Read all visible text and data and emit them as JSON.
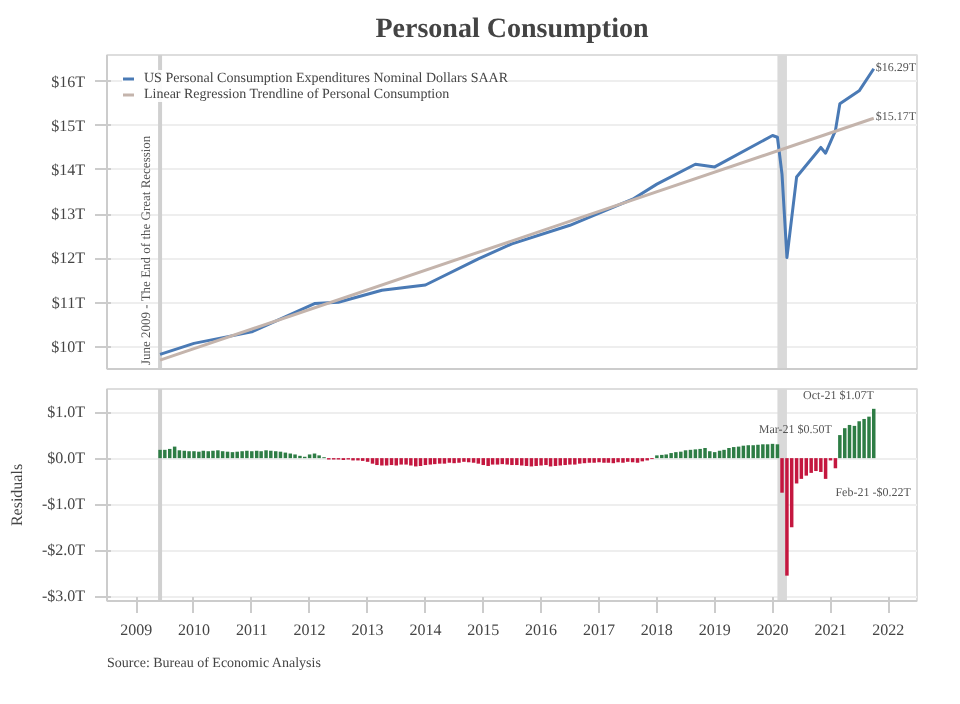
{
  "chart_data": [
    {
      "type": "line",
      "title": "Personal Consumption",
      "series": [
        {
          "name": "US Personal Consumption Expenditures Nominal Dollars SAAR",
          "color": "#4a7ab5",
          "x": [
            "2009-06",
            "2010-01",
            "2011-01",
            "2012-02",
            "2012-07",
            "2013-04",
            "2014-01",
            "2014-12",
            "2015-07",
            "2016-07",
            "2017-08",
            "2018-01",
            "2018-09",
            "2019-01",
            "2020-01",
            "2020-02",
            "2020-03",
            "2020-04",
            "2020-06",
            "2020-11",
            "2020-12",
            "2021-02",
            "2021-03",
            "2021-07",
            "2021-10"
          ],
          "values": [
            9.83,
            10.08,
            10.34,
            10.98,
            11.01,
            11.28,
            11.4,
            11.99,
            12.33,
            12.75,
            13.34,
            13.68,
            14.13,
            14.07,
            14.78,
            14.74,
            13.9,
            12.02,
            13.84,
            14.51,
            14.38,
            14.89,
            15.5,
            15.79,
            16.29
          ]
        },
        {
          "name": "Linear Regression Trendline of Personal Consumption",
          "color": "#c4b4ac",
          "x": [
            "2009-06",
            "2021-10"
          ],
          "values": [
            9.7,
            15.17
          ]
        }
      ],
      "xlim": [
        "2008-07",
        "2022-07"
      ],
      "xticks": [
        "2009",
        "2010",
        "2011",
        "2012",
        "2013",
        "2014",
        "2015",
        "2016",
        "2017",
        "2018",
        "2019",
        "2020",
        "2021",
        "2022"
      ],
      "ylim": [
        9.5,
        16.6
      ],
      "yticks": [
        {
          "value": 10,
          "label": "$10T"
        },
        {
          "value": 11,
          "label": "$11T"
        },
        {
          "value": 12,
          "label": "$12T"
        },
        {
          "value": 13,
          "label": "$13T"
        },
        {
          "value": 14,
          "label": "$14T"
        },
        {
          "value": 15,
          "label": "$15T"
        },
        {
          "value": 16,
          "label": "$16T"
        }
      ],
      "tick_labels": "y",
      "grid": "y",
      "legend": "top left",
      "ref_lines": [
        {
          "axis": "x",
          "value": "2009-06",
          "label": "June 2009 - The End of the Great Recession",
          "color": "#d0d0d0"
        }
      ],
      "bands": [
        {
          "axis": "x",
          "from": "2020-02",
          "to": "2020-04",
          "color": "#d9d9d9"
        }
      ],
      "annotations": [
        {
          "text": "$16.29T",
          "x": "2021-10",
          "y": 16.29
        },
        {
          "text": "$15.17T",
          "x": "2021-10",
          "y": 15.17
        }
      ]
    },
    {
      "type": "bar",
      "ylabel": "Residuals",
      "x": [
        "2009-06",
        "2009-07",
        "2009-08",
        "2009-09",
        "2009-10",
        "2009-11",
        "2009-12",
        "2010-01",
        "2010-02",
        "2010-03",
        "2010-04",
        "2010-05",
        "2010-06",
        "2010-07",
        "2010-08",
        "2010-09",
        "2010-10",
        "2010-11",
        "2010-12",
        "2011-01",
        "2011-02",
        "2011-03",
        "2011-04",
        "2011-05",
        "2011-06",
        "2011-07",
        "2011-08",
        "2011-09",
        "2011-10",
        "2011-11",
        "2011-12",
        "2012-01",
        "2012-02",
        "2012-03",
        "2012-04",
        "2012-05",
        "2012-06",
        "2012-07",
        "2012-08",
        "2012-09",
        "2012-10",
        "2012-11",
        "2012-12",
        "2013-01",
        "2013-02",
        "2013-03",
        "2013-04",
        "2013-05",
        "2013-06",
        "2013-07",
        "2013-08",
        "2013-09",
        "2013-10",
        "2013-11",
        "2013-12",
        "2014-01",
        "2014-02",
        "2014-03",
        "2014-04",
        "2014-05",
        "2014-06",
        "2014-07",
        "2014-08",
        "2014-09",
        "2014-10",
        "2014-11",
        "2014-12",
        "2015-01",
        "2015-02",
        "2015-03",
        "2015-04",
        "2015-05",
        "2015-06",
        "2015-07",
        "2015-08",
        "2015-09",
        "2015-10",
        "2015-11",
        "2015-12",
        "2016-01",
        "2016-02",
        "2016-03",
        "2016-04",
        "2016-05",
        "2016-06",
        "2016-07",
        "2016-08",
        "2016-09",
        "2016-10",
        "2016-11",
        "2016-12",
        "2017-01",
        "2017-02",
        "2017-03",
        "2017-04",
        "2017-05",
        "2017-06",
        "2017-07",
        "2017-08",
        "2017-09",
        "2017-10",
        "2017-11",
        "2017-12",
        "2018-01",
        "2018-02",
        "2018-03",
        "2018-04",
        "2018-05",
        "2018-06",
        "2018-07",
        "2018-08",
        "2018-09",
        "2018-10",
        "2018-11",
        "2018-12",
        "2019-01",
        "2019-02",
        "2019-03",
        "2019-04",
        "2019-05",
        "2019-06",
        "2019-07",
        "2019-08",
        "2019-09",
        "2019-10",
        "2019-11",
        "2019-12",
        "2020-01",
        "2020-02",
        "2020-03",
        "2020-04",
        "2020-05",
        "2020-06",
        "2020-07",
        "2020-08",
        "2020-09",
        "2020-10",
        "2020-11",
        "2020-12",
        "2021-01",
        "2021-02",
        "2021-03",
        "2021-04",
        "2021-05",
        "2021-06",
        "2021-07",
        "2021-08",
        "2021-09",
        "2021-10"
      ],
      "values": [
        0.18,
        0.18,
        0.2,
        0.25,
        0.17,
        0.16,
        0.15,
        0.15,
        0.14,
        0.16,
        0.15,
        0.16,
        0.17,
        0.15,
        0.14,
        0.13,
        0.14,
        0.15,
        0.16,
        0.15,
        0.16,
        0.15,
        0.17,
        0.16,
        0.15,
        0.14,
        0.12,
        0.1,
        0.08,
        0.05,
        0.03,
        0.08,
        0.1,
        0.06,
        0.02,
        -0.03,
        -0.03,
        -0.03,
        -0.04,
        -0.03,
        -0.05,
        -0.05,
        -0.06,
        -0.08,
        -0.12,
        -0.15,
        -0.16,
        -0.16,
        -0.15,
        -0.16,
        -0.14,
        -0.14,
        -0.16,
        -0.18,
        -0.17,
        -0.15,
        -0.14,
        -0.13,
        -0.12,
        -0.12,
        -0.1,
        -0.11,
        -0.1,
        -0.08,
        -0.09,
        -0.1,
        -0.12,
        -0.15,
        -0.17,
        -0.14,
        -0.14,
        -0.13,
        -0.14,
        -0.15,
        -0.15,
        -0.16,
        -0.17,
        -0.18,
        -0.17,
        -0.16,
        -0.15,
        -0.18,
        -0.17,
        -0.16,
        -0.15,
        -0.14,
        -0.14,
        -0.12,
        -0.11,
        -0.1,
        -0.1,
        -0.09,
        -0.1,
        -0.1,
        -0.11,
        -0.09,
        -0.1,
        -0.08,
        -0.09,
        -0.1,
        -0.07,
        -0.05,
        -0.02,
        0.06,
        0.07,
        0.08,
        0.11,
        0.13,
        0.14,
        0.17,
        0.18,
        0.19,
        0.2,
        0.22,
        0.15,
        0.13,
        0.16,
        0.18,
        0.22,
        0.24,
        0.25,
        0.27,
        0.28,
        0.28,
        0.29,
        0.3,
        0.3,
        0.31,
        0.3,
        -0.75,
        -2.55,
        -1.5,
        -0.55,
        -0.45,
        -0.38,
        -0.32,
        -0.28,
        -0.3,
        -0.45,
        -0.05,
        -0.22,
        0.5,
        0.65,
        0.72,
        0.7,
        0.8,
        0.85,
        0.9,
        1.07
      ],
      "colors": [
        "#2e7d45",
        "#2e7d45",
        "#2e7d45",
        "#2e7d45",
        "#2e7d45",
        "#2e7d45",
        "#2e7d45",
        "#2e7d45",
        "#2e7d45",
        "#2e7d45",
        "#2e7d45",
        "#2e7d45",
        "#2e7d45",
        "#2e7d45",
        "#2e7d45",
        "#2e7d45",
        "#2e7d45",
        "#2e7d45",
        "#2e7d45",
        "#2e7d45",
        "#2e7d45",
        "#2e7d45",
        "#2e7d45",
        "#2e7d45",
        "#2e7d45",
        "#2e7d45",
        "#2e7d45",
        "#2e7d45",
        "#2e7d45",
        "#2e7d45",
        "#2e7d45",
        "#2e7d45",
        "#2e7d45",
        "#2e7d45",
        "#2e7d45",
        "#c4173f",
        "#c4173f",
        "#c4173f",
        "#c4173f",
        "#c4173f",
        "#c4173f",
        "#c4173f",
        "#c4173f",
        "#c4173f",
        "#c4173f",
        "#c4173f",
        "#c4173f",
        "#c4173f",
        "#c4173f",
        "#c4173f",
        "#c4173f",
        "#c4173f",
        "#c4173f",
        "#c4173f",
        "#c4173f",
        "#c4173f",
        "#c4173f",
        "#c4173f",
        "#c4173f",
        "#c4173f",
        "#c4173f",
        "#c4173f",
        "#c4173f",
        "#c4173f",
        "#c4173f",
        "#c4173f",
        "#c4173f",
        "#c4173f",
        "#c4173f",
        "#c4173f",
        "#c4173f",
        "#c4173f",
        "#c4173f",
        "#c4173f",
        "#c4173f",
        "#c4173f",
        "#c4173f",
        "#c4173f",
        "#c4173f",
        "#c4173f",
        "#c4173f",
        "#c4173f",
        "#c4173f",
        "#c4173f",
        "#c4173f",
        "#c4173f",
        "#c4173f",
        "#c4173f",
        "#c4173f",
        "#c4173f",
        "#c4173f",
        "#c4173f",
        "#c4173f",
        "#c4173f",
        "#c4173f",
        "#c4173f",
        "#c4173f",
        "#c4173f",
        "#c4173f",
        "#c4173f",
        "#c4173f",
        "#c4173f",
        "#c4173f",
        "#2e7d45",
        "#2e7d45",
        "#2e7d45",
        "#2e7d45",
        "#2e7d45",
        "#2e7d45",
        "#2e7d45",
        "#2e7d45",
        "#2e7d45",
        "#2e7d45",
        "#2e7d45",
        "#2e7d45",
        "#2e7d45",
        "#2e7d45",
        "#2e7d45",
        "#2e7d45",
        "#2e7d45",
        "#2e7d45",
        "#2e7d45",
        "#2e7d45",
        "#2e7d45",
        "#2e7d45",
        "#2e7d45",
        "#2e7d45",
        "#2e7d45",
        "#2e7d45",
        "#c4173f",
        "#c4173f",
        "#c4173f",
        "#c4173f",
        "#c4173f",
        "#c4173f",
        "#c4173f",
        "#c4173f",
        "#c4173f",
        "#c4173f",
        "#c4173f",
        "#c4173f",
        "#2e7d45",
        "#2e7d45",
        "#2e7d45",
        "#2e7d45",
        "#2e7d45",
        "#2e7d45",
        "#2e7d45",
        "#2e7d45"
      ],
      "xlim": [
        "2008-07",
        "2022-07"
      ],
      "xticks": [
        "2009",
        "2010",
        "2011",
        "2012",
        "2013",
        "2014",
        "2015",
        "2016",
        "2017",
        "2018",
        "2019",
        "2020",
        "2021",
        "2022"
      ],
      "ylim": [
        -3.1,
        1.5
      ],
      "yticks": [
        {
          "value": 1,
          "label": "$1.0T"
        },
        {
          "value": 0,
          "label": "$0.0T"
        },
        {
          "value": -1,
          "label": "-$1.0T"
        },
        {
          "value": -2,
          "label": "-$2.0T"
        },
        {
          "value": -3,
          "label": "-$3.0T"
        }
      ],
      "grid": "y",
      "ref_lines": [
        {
          "axis": "x",
          "value": "2009-06",
          "color": "#d0d0d0"
        }
      ],
      "bands": [
        {
          "axis": "x",
          "from": "2020-02",
          "to": "2020-04",
          "color": "#d9d9d9"
        }
      ],
      "annotations": [
        {
          "text": "Mar-21 $0.50T",
          "x": "2021-03",
          "y": 0.5
        },
        {
          "text": "Oct-21 $1.07T",
          "x": "2021-10",
          "y": 1.07
        },
        {
          "text": "Feb-21 -$0.22T",
          "x": "2021-02",
          "y": -0.22
        },
        "Source: Bureau of Economic Analysis"
      ]
    }
  ]
}
